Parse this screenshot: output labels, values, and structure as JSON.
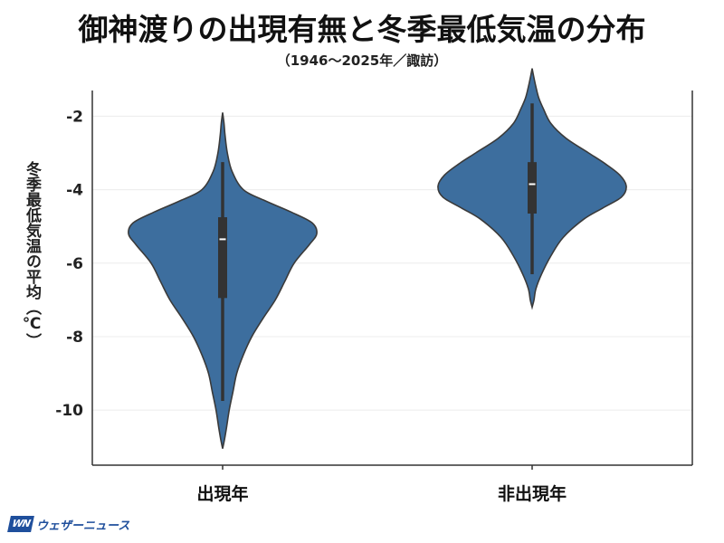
{
  "title": "御神渡りの出現有無と冬季最低気温の分布",
  "subtitle": "（1946〜2025年／諏訪）",
  "brand": {
    "mark": "WN",
    "name": "ウェザーニュース"
  },
  "colors": {
    "violin_fill": "#3d6e9e",
    "violin_edge": "#3a3a3a",
    "box": "#333333",
    "median": "#ffffff",
    "grid": "#ececec",
    "axis": "#333333"
  },
  "chart_data": {
    "type": "violin",
    "ylabel": "冬季最低気温の平均（℃）",
    "xlabel": "",
    "categories": [
      "出現年",
      "非出現年"
    ],
    "ylim": [
      -11.5,
      -1.3
    ],
    "yticks": [
      -2,
      -4,
      -6,
      -8,
      -10
    ],
    "grid": true,
    "groups": [
      {
        "category": "出現年",
        "median": -5.35,
        "q1": -6.95,
        "q3": -4.75,
        "whisker_low": -9.75,
        "whisker_high": -3.25,
        "range": [
          -11.05,
          -1.9
        ],
        "density": [
          [
            -11.05,
            0.0
          ],
          [
            -10.8,
            0.02
          ],
          [
            -10.5,
            0.04
          ],
          [
            -10.0,
            0.07
          ],
          [
            -9.5,
            0.11
          ],
          [
            -9.0,
            0.15
          ],
          [
            -8.5,
            0.22
          ],
          [
            -8.0,
            0.31
          ],
          [
            -7.5,
            0.43
          ],
          [
            -7.0,
            0.56
          ],
          [
            -6.5,
            0.66
          ],
          [
            -6.0,
            0.76
          ],
          [
            -5.5,
            0.92
          ],
          [
            -5.2,
            1.0
          ],
          [
            -4.9,
            0.95
          ],
          [
            -4.6,
            0.72
          ],
          [
            -4.3,
            0.45
          ],
          [
            -4.0,
            0.22
          ],
          [
            -3.5,
            0.1
          ],
          [
            -3.0,
            0.05
          ],
          [
            -2.5,
            0.025
          ],
          [
            -2.2,
            0.015
          ],
          [
            -1.9,
            0.0
          ]
        ]
      },
      {
        "category": "非出現年",
        "median": -3.85,
        "q1": -4.65,
        "q3": -3.25,
        "whisker_low": -6.3,
        "whisker_high": -1.65,
        "range": [
          -7.2,
          -0.7
        ],
        "density": [
          [
            -7.2,
            0.0
          ],
          [
            -7.0,
            0.02
          ],
          [
            -6.7,
            0.04
          ],
          [
            -6.3,
            0.1
          ],
          [
            -5.8,
            0.2
          ],
          [
            -5.3,
            0.33
          ],
          [
            -4.8,
            0.55
          ],
          [
            -4.5,
            0.75
          ],
          [
            -4.2,
            0.95
          ],
          [
            -3.9,
            1.0
          ],
          [
            -3.6,
            0.93
          ],
          [
            -3.3,
            0.78
          ],
          [
            -3.0,
            0.6
          ],
          [
            -2.6,
            0.36
          ],
          [
            -2.2,
            0.2
          ],
          [
            -1.8,
            0.12
          ],
          [
            -1.5,
            0.07
          ],
          [
            -1.2,
            0.04
          ],
          [
            -0.9,
            0.015
          ],
          [
            -0.7,
            0.0
          ]
        ]
      }
    ]
  }
}
